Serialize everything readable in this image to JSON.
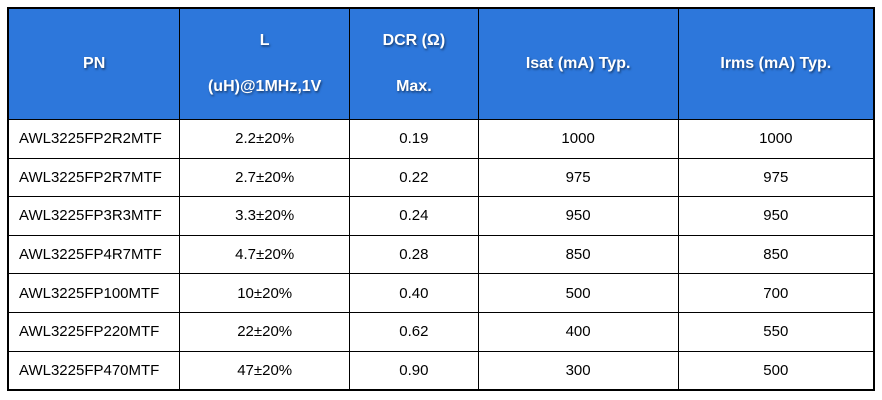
{
  "table": {
    "columns": [
      {
        "id": "pn",
        "align": "left",
        "label_lines": [
          "PN"
        ]
      },
      {
        "id": "l",
        "align": "center",
        "label_lines": [
          "L",
          "(uH)@1MHz,1V"
        ]
      },
      {
        "id": "dcr",
        "align": "center",
        "label_lines": [
          "DCR (Ω)",
          "Max."
        ]
      },
      {
        "id": "isat",
        "align": "center",
        "label_lines": [
          "Isat (mA) Typ."
        ]
      },
      {
        "id": "irms",
        "align": "center",
        "label_lines": [
          "Irms (mA) Typ."
        ]
      }
    ],
    "rows": [
      [
        "AWL3225FP2R2MTF",
        "2.2±20%",
        "0.19",
        "1000",
        "1000"
      ],
      [
        "AWL3225FP2R7MTF",
        "2.7±20%",
        "0.22",
        "975",
        "975"
      ],
      [
        "AWL3225FP3R3MTF",
        "3.3±20%",
        "0.24",
        "950",
        "950"
      ],
      [
        "AWL3225FP4R7MTF",
        "4.7±20%",
        "0.28",
        "850",
        "850"
      ],
      [
        "AWL3225FP100MTF",
        "10±20%",
        "0.40",
        "500",
        "700"
      ],
      [
        "AWL3225FP220MTF",
        "22±20%",
        "0.62",
        "400",
        "550"
      ],
      [
        "AWL3225FP470MTF",
        "47±20%",
        "0.90",
        "300",
        "500"
      ]
    ]
  },
  "colors": {
    "header_bg": "#2d77db",
    "header_text": "#ffffff",
    "body_text": "#000000",
    "border": "#000000",
    "page_bg": "#ffffff"
  },
  "chart_data": {
    "type": "table",
    "title": "",
    "columns": [
      "PN",
      "L (uH)@1MHz,1V",
      "DCR (Ω) Max.",
      "Isat (mA) Typ.",
      "Irms (mA) Typ."
    ],
    "rows": [
      [
        "AWL3225FP2R2MTF",
        "2.2±20%",
        0.19,
        1000,
        1000
      ],
      [
        "AWL3225FP2R7MTF",
        "2.7±20%",
        0.22,
        975,
        975
      ],
      [
        "AWL3225FP3R3MTF",
        "3.3±20%",
        0.24,
        950,
        950
      ],
      [
        "AWL3225FP4R7MTF",
        "4.7±20%",
        0.28,
        850,
        850
      ],
      [
        "AWL3225FP100MTF",
        "10±20%",
        0.4,
        500,
        700
      ],
      [
        "AWL3225FP220MTF",
        "22±20%",
        0.62,
        400,
        550
      ],
      [
        "AWL3225FP470MTF",
        "47±20%",
        0.9,
        300,
        500
      ]
    ]
  }
}
